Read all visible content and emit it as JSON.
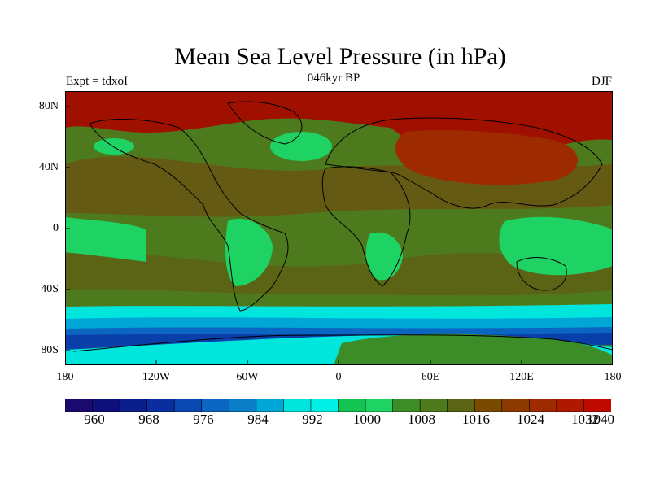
{
  "title": "Mean Sea Level Pressure (in hPa)",
  "subtitle_left": "Expt = tdxoI",
  "subtitle_center": "046kyr BP",
  "subtitle_right": "DJF",
  "lat_labels": [
    "80N",
    "40N",
    "0",
    "40S",
    "80S"
  ],
  "lon_labels": [
    "180",
    "120W",
    "60W",
    "0",
    "60E",
    "120E",
    "180"
  ],
  "colorbar_labels": [
    "960",
    "968",
    "976",
    "984",
    "992",
    "1000",
    "1008",
    "1016",
    "1024",
    "1032",
    "1040"
  ],
  "colorbar_colors": [
    "#1a0a6e",
    "#0d0f7a",
    "#0a1f8c",
    "#0a2ea0",
    "#0a48b4",
    "#0a66c0",
    "#0a7fc8",
    "#00a6d6",
    "#00e6dc",
    "#00f0e6",
    "#12c450",
    "#1ed264",
    "#3c8c28",
    "#4e7a1e",
    "#5a6414",
    "#7a4a00",
    "#8c3a00",
    "#9e2a00",
    "#b01800",
    "#c00a00"
  ],
  "region_colors": {
    "very_high": "#a01000",
    "high": "#8c3a00",
    "mid_high": "#6a4e10",
    "mid": "#4e7a1e",
    "green": "#3c8c28",
    "light_green": "#1ed264",
    "cyan": "#00e6dc",
    "light_blue": "#00a6d6",
    "blue": "#0a66c0",
    "deep_blue": "#0a3ea8"
  }
}
